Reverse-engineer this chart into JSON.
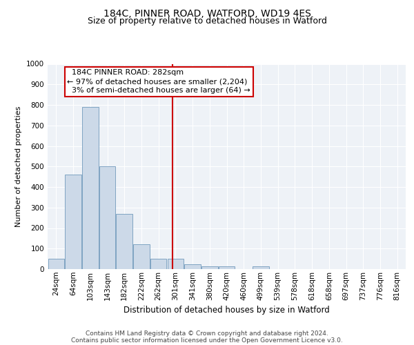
{
  "title": "184C, PINNER ROAD, WATFORD, WD19 4ES",
  "subtitle": "Size of property relative to detached houses in Watford",
  "xlabel": "Distribution of detached houses by size in Watford",
  "ylabel": "Number of detached properties",
  "categories": [
    "24sqm",
    "64sqm",
    "103sqm",
    "143sqm",
    "182sqm",
    "222sqm",
    "262sqm",
    "301sqm",
    "341sqm",
    "380sqm",
    "420sqm",
    "460sqm",
    "499sqm",
    "539sqm",
    "578sqm",
    "618sqm",
    "658sqm",
    "697sqm",
    "737sqm",
    "776sqm",
    "816sqm"
  ],
  "values": [
    50,
    460,
    790,
    500,
    270,
    122,
    50,
    50,
    22,
    12,
    12,
    0,
    12,
    0,
    0,
    0,
    0,
    0,
    0,
    0,
    0
  ],
  "bar_color": "#ccd9e8",
  "bar_edge_color": "#7099bb",
  "vline_x_index": 6.82,
  "vline_color": "#cc0000",
  "annotation_text": "  184C PINNER ROAD: 282sqm  \n← 97% of detached houses are smaller (2,204)\n  3% of semi-detached houses are larger (64) →",
  "annotation_box_edgecolor": "#cc0000",
  "ylim": [
    0,
    1000
  ],
  "yticks": [
    0,
    100,
    200,
    300,
    400,
    500,
    600,
    700,
    800,
    900,
    1000
  ],
  "bg_color": "#eef2f7",
  "grid_color": "#ffffff",
  "footer_line1": "Contains HM Land Registry data © Crown copyright and database right 2024.",
  "footer_line2": "Contains public sector information licensed under the Open Government Licence v3.0.",
  "title_fontsize": 10,
  "subtitle_fontsize": 9,
  "xlabel_fontsize": 8.5,
  "ylabel_fontsize": 8,
  "tick_fontsize": 7.5,
  "annotation_fontsize": 8,
  "footer_fontsize": 6.5
}
